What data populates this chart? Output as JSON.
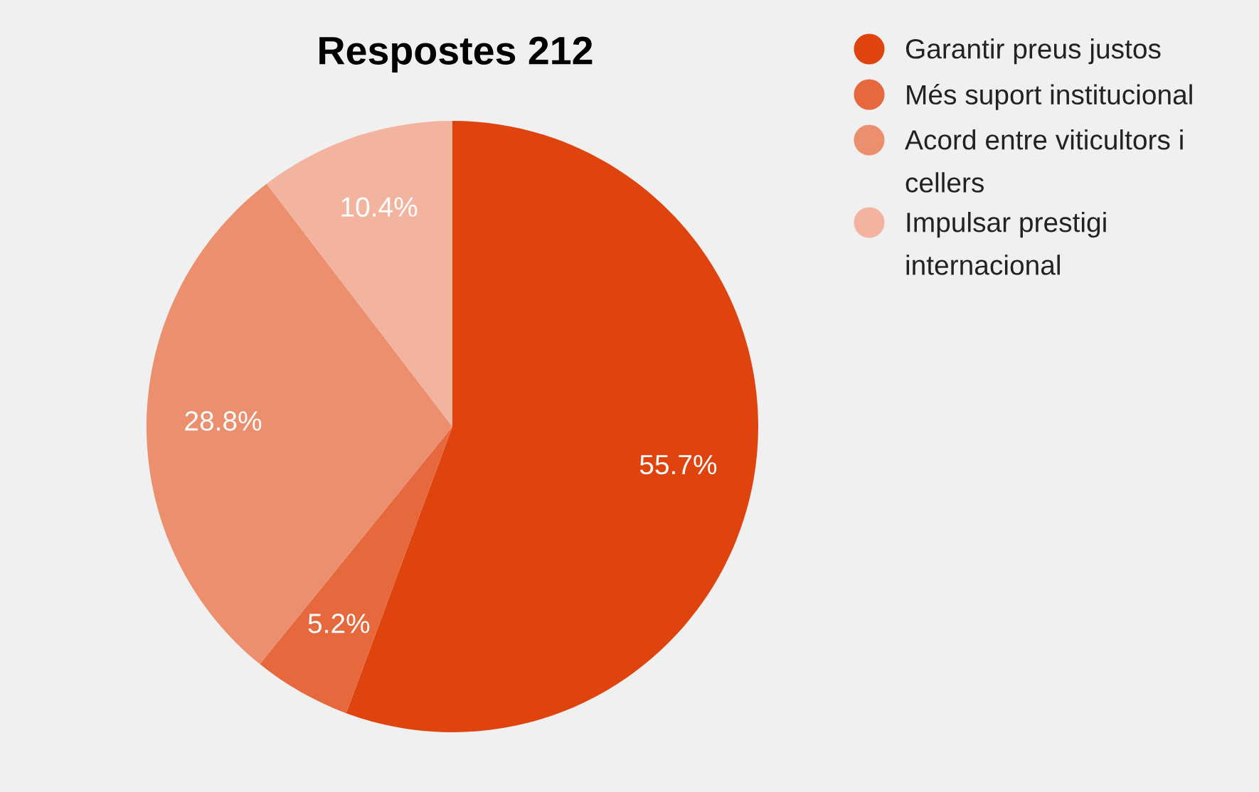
{
  "chart_data": {
    "type": "pie",
    "title": "Respostes 212",
    "categories": [
      "Garantir preus justos",
      "Més suport institucional",
      "Acord entre viticultors i cellers",
      "Impulsar prestigi internacional"
    ],
    "values": [
      55.7,
      5.2,
      28.8,
      10.4
    ],
    "colors": [
      "#e0440e",
      "#e6693e",
      "#ec8f6e",
      "#f3b49f"
    ],
    "value_labels": [
      "55.7%",
      "5.2%",
      "28.8%",
      "10.4%"
    ],
    "legend": "top right"
  }
}
